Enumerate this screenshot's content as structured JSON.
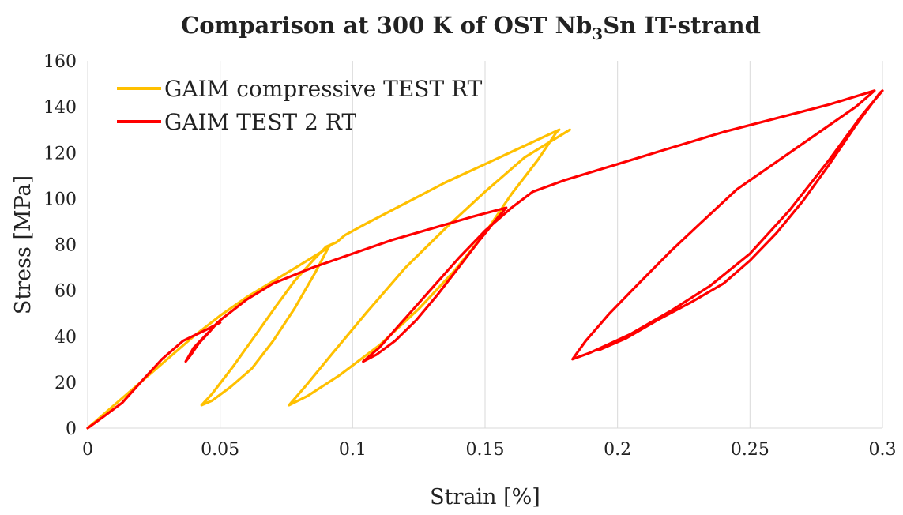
{
  "chart_data": {
    "type": "line",
    "title": {
      "part1": "Comparison at 300 K of OST Nb",
      "subscript": "3",
      "part2": "Sn IT-strand"
    },
    "xlabel": "Strain [%]",
    "ylabel": "Stress [MPa]",
    "xlim": [
      0,
      0.3
    ],
    "ylim": [
      0,
      160
    ],
    "x_ticks": [
      0,
      0.05,
      0.1,
      0.15,
      0.2,
      0.25,
      0.3
    ],
    "x_tick_labels": [
      "0",
      "0.05",
      "0.1",
      "0.15",
      "0.2",
      "0.25",
      "0.3"
    ],
    "y_ticks": [
      0,
      20,
      40,
      60,
      80,
      100,
      120,
      140,
      160
    ],
    "y_tick_labels": [
      "0",
      "20",
      "40",
      "60",
      "80",
      "100",
      "120",
      "140",
      "160"
    ],
    "grid": "vertical",
    "legend_position": "top-left",
    "series": [
      {
        "name": "GAIM compressive TEST RT",
        "color": "#FFC000",
        "points": [
          [
            0.0,
            0
          ],
          [
            0.003,
            3
          ],
          [
            0.008,
            8
          ],
          [
            0.015,
            15
          ],
          [
            0.022,
            22
          ],
          [
            0.03,
            30
          ],
          [
            0.04,
            40
          ],
          [
            0.05,
            49
          ],
          [
            0.06,
            57
          ],
          [
            0.07,
            64
          ],
          [
            0.08,
            71
          ],
          [
            0.09,
            78
          ],
          [
            0.092,
            80
          ],
          [
            0.091,
            79
          ],
          [
            0.086,
            68
          ],
          [
            0.078,
            52
          ],
          [
            0.07,
            38
          ],
          [
            0.062,
            26
          ],
          [
            0.054,
            18
          ],
          [
            0.047,
            12
          ],
          [
            0.043,
            10
          ],
          [
            0.047,
            15
          ],
          [
            0.055,
            27
          ],
          [
            0.063,
            40
          ],
          [
            0.071,
            53
          ],
          [
            0.078,
            64
          ],
          [
            0.085,
            73
          ],
          [
            0.09,
            79
          ],
          [
            0.094,
            81
          ],
          [
            0.097,
            84
          ],
          [
            0.105,
            89
          ],
          [
            0.12,
            98
          ],
          [
            0.135,
            107
          ],
          [
            0.15,
            115
          ],
          [
            0.165,
            123
          ],
          [
            0.178,
            130
          ],
          [
            0.177,
            129
          ],
          [
            0.17,
            117
          ],
          [
            0.16,
            102
          ],
          [
            0.15,
            85
          ],
          [
            0.138,
            68
          ],
          [
            0.125,
            52
          ],
          [
            0.11,
            36
          ],
          [
            0.095,
            23
          ],
          [
            0.083,
            14
          ],
          [
            0.076,
            10
          ],
          [
            0.082,
            18
          ],
          [
            0.092,
            32
          ],
          [
            0.105,
            50
          ],
          [
            0.12,
            70
          ],
          [
            0.135,
            87
          ],
          [
            0.15,
            103
          ],
          [
            0.165,
            118
          ],
          [
            0.182,
            130
          ]
        ]
      },
      {
        "name": "GAIM TEST 2 RT",
        "color": "#FF0000",
        "points": [
          [
            0.0,
            0
          ],
          [
            0.006,
            5
          ],
          [
            0.013,
            11
          ],
          [
            0.02,
            20
          ],
          [
            0.028,
            30
          ],
          [
            0.036,
            38
          ],
          [
            0.045,
            43
          ],
          [
            0.05,
            46
          ],
          [
            0.049,
            46
          ],
          [
            0.046,
            42
          ],
          [
            0.042,
            37
          ],
          [
            0.039,
            32
          ],
          [
            0.037,
            29
          ],
          [
            0.04,
            35
          ],
          [
            0.045,
            41
          ],
          [
            0.05,
            47
          ],
          [
            0.06,
            56
          ],
          [
            0.07,
            63
          ],
          [
            0.085,
            70
          ],
          [
            0.1,
            76
          ],
          [
            0.115,
            82
          ],
          [
            0.13,
            87
          ],
          [
            0.145,
            92
          ],
          [
            0.158,
            96
          ],
          [
            0.155,
            92
          ],
          [
            0.148,
            82
          ],
          [
            0.14,
            70
          ],
          [
            0.132,
            58
          ],
          [
            0.124,
            47
          ],
          [
            0.116,
            38
          ],
          [
            0.109,
            32
          ],
          [
            0.104,
            29
          ],
          [
            0.11,
            35
          ],
          [
            0.12,
            48
          ],
          [
            0.13,
            61
          ],
          [
            0.14,
            74
          ],
          [
            0.15,
            86
          ],
          [
            0.16,
            96
          ],
          [
            0.168,
            103
          ],
          [
            0.18,
            108
          ],
          [
            0.2,
            115
          ],
          [
            0.22,
            122
          ],
          [
            0.24,
            129
          ],
          [
            0.26,
            135
          ],
          [
            0.28,
            141
          ],
          [
            0.297,
            147
          ],
          [
            0.29,
            140
          ],
          [
            0.275,
            128
          ],
          [
            0.26,
            116
          ],
          [
            0.245,
            104
          ],
          [
            0.232,
            90
          ],
          [
            0.22,
            77
          ],
          [
            0.208,
            63
          ],
          [
            0.197,
            50
          ],
          [
            0.188,
            38
          ],
          [
            0.183,
            30
          ],
          [
            0.19,
            33
          ],
          [
            0.205,
            41
          ],
          [
            0.22,
            51
          ],
          [
            0.235,
            62
          ],
          [
            0.25,
            76
          ],
          [
            0.265,
            95
          ],
          [
            0.28,
            117
          ],
          [
            0.292,
            136
          ],
          [
            0.3,
            147
          ],
          [
            0.299,
            146
          ],
          [
            0.29,
            132
          ],
          [
            0.28,
            115
          ],
          [
            0.27,
            99
          ],
          [
            0.26,
            85
          ],
          [
            0.25,
            73
          ],
          [
            0.24,
            63
          ],
          [
            0.228,
            55
          ],
          [
            0.215,
            47
          ],
          [
            0.203,
            39
          ],
          [
            0.193,
            34
          ]
        ]
      }
    ]
  }
}
